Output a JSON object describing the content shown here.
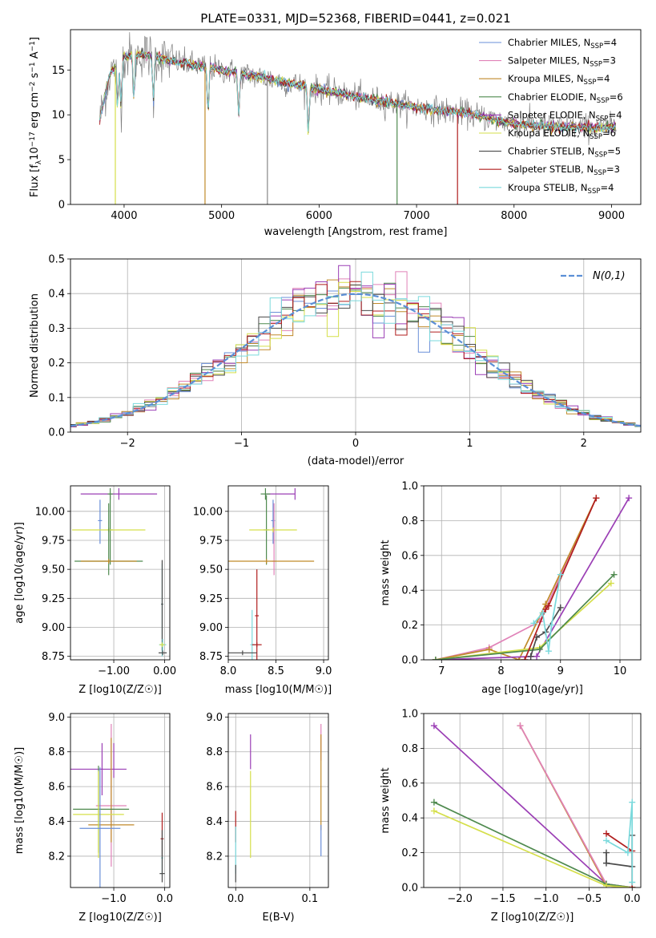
{
  "figure_title": "PLATE=0331, MJD=52368, FIBERID=0441, z=0.021",
  "models": [
    {
      "name": "Chabrier MILES, N_SSP=4",
      "label_main": "Chabrier MILES, N",
      "label_sub": "SSP",
      "label_tail": "=4",
      "color": "#6a8fd8"
    },
    {
      "name": "Salpeter MILES, N_SSP=3",
      "label_main": "Salpeter MILES, N",
      "label_sub": "SSP",
      "label_tail": "=3",
      "color": "#e082b8"
    },
    {
      "name": "Kroupa MILES, N_SSP=4",
      "label_main": "Kroupa MILES, N",
      "label_sub": "SSP",
      "label_tail": "=4",
      "color": "#c08a2a"
    },
    {
      "name": "Chabrier ELODIE, N_SSP=6",
      "label_main": "Chabrier ELODIE, N",
      "label_sub": "SSP",
      "label_tail": "=6",
      "color": "#4f8a4f"
    },
    {
      "name": "Salpeter ELODIE, N_SSP=4",
      "label_main": "Salpeter ELODIE, N",
      "label_sub": "SSP",
      "label_tail": "=4",
      "color": "#9b3fb5"
    },
    {
      "name": "Kroupa ELODIE, N_SSP=6",
      "label_main": "Kroupa ELODIE, N",
      "label_sub": "SSP",
      "label_tail": "=6",
      "color": "#d5df4a"
    },
    {
      "name": "Chabrier STELIB, N_SSP=5",
      "label_main": "Chabrier STELIB, N",
      "label_sub": "SSP",
      "label_tail": "=5",
      "color": "#4a4a4a"
    },
    {
      "name": "Salpeter STELIB, N_SSP=3",
      "label_main": "Salpeter STELIB, N",
      "label_sub": "SSP",
      "label_tail": "=3",
      "color": "#b01e1e"
    },
    {
      "name": "Kroupa STELIB, N_SSP=4",
      "label_main": "Kroupa STELIB, N",
      "label_sub": "SSP",
      "label_tail": "=4",
      "color": "#7ad9dc"
    }
  ],
  "chart_data": [
    {
      "id": "spectrum",
      "type": "line",
      "xlabel": "wavelength [Angstrom, rest frame]",
      "ylabel_pre": "Flux [f",
      "ylabel_sub": "λ",
      "ylabel_mid": "10",
      "ylabel_sup1": "−17",
      "ylabel_post": " erg cm",
      "ylabel_sup2": "−2",
      "ylabel_post2": " s",
      "ylabel_sup3": "−1",
      "ylabel_post3": " A",
      "ylabel_sup4": "−1",
      "ylabel_end": "]",
      "xlim": [
        3450,
        9300
      ],
      "ylim": [
        0,
        19.5
      ],
      "xticks": [
        4000,
        5000,
        6000,
        7000,
        8000,
        9000
      ],
      "yticks": [
        0,
        5,
        10,
        15
      ],
      "data_color": "#808080",
      "continuum": {
        "x": [
          3750,
          3850,
          4000,
          4200,
          4500,
          5000,
          5500,
          6000,
          6500,
          7000,
          7500,
          8000,
          8500,
          9000
        ],
        "y": [
          9.5,
          14.5,
          16.5,
          16.8,
          16.0,
          15.0,
          14.0,
          12.8,
          11.8,
          10.8,
          10.2,
          9.0,
          8.6,
          8.6
        ]
      }
    },
    {
      "id": "residuals",
      "type": "step-histogram",
      "xlabel": "(data-model)/error",
      "ylabel": "Normed distribution",
      "xlim": [
        -2.5,
        2.5
      ],
      "ylim": [
        0,
        0.5
      ],
      "xticks": [
        -2,
        -1,
        0,
        1,
        2
      ],
      "yticks": [
        0,
        0.1,
        0.2,
        0.3,
        0.4,
        0.5
      ],
      "bin_width": 0.1,
      "reference_label": "N(0,1)",
      "reference_color": "#5b8fd6"
    },
    {
      "id": "Z_vs_age",
      "type": "errorbar",
      "xlabel": "Z [log10(Z/Z☉)]",
      "ylabel": "age  [log10(age/yr)]",
      "xlim": [
        -1.85,
        0.1
      ],
      "ylim": [
        8.72,
        10.22
      ],
      "xticks": [
        -1,
        0
      ],
      "yticks": [
        8.75,
        9.0,
        9.25,
        9.5,
        9.75,
        10.0
      ],
      "points": [
        {
          "m": 4,
          "x": -0.9,
          "y": 10.15,
          "xerr": [
            0.75,
            0.75
          ],
          "yerr": [
            0.05,
            0.05
          ]
        },
        {
          "m": 3,
          "x": -1.07,
          "y": 10.15,
          "xerr": [
            0.05,
            0.05
          ],
          "yerr": [
            0.05,
            0.05
          ]
        },
        {
          "m": 0,
          "x": -1.27,
          "y": 9.92,
          "xerr": [
            0.04,
            0.04
          ],
          "yerr": [
            0.2,
            0.18
          ]
        },
        {
          "m": 3,
          "x": -1.07,
          "y": 9.84,
          "xerr": [
            0.05,
            0.05
          ],
          "yerr": [
            0.3,
            0.3
          ]
        },
        {
          "m": 5,
          "x": -1.1,
          "y": 9.84,
          "xerr": [
            0.72,
            0.72
          ],
          "yerr": [
            0.02,
            0.02
          ]
        },
        {
          "m": 3,
          "x": -1.1,
          "y": 9.57,
          "xerr": [
            0.67,
            0.67
          ],
          "yerr": [
            0.12,
            0.5
          ]
        },
        {
          "m": 2,
          "x": -1.1,
          "y": 9.57,
          "xerr": [
            0.55,
            0.55
          ],
          "yerr": [
            0.02,
            0.02
          ]
        },
        {
          "m": 8,
          "x": -0.05,
          "y": 9.2,
          "xerr": [
            0.02,
            0.02
          ],
          "yerr": [
            0.45,
            0.35
          ]
        },
        {
          "m": 6,
          "x": -0.05,
          "y": 9.2,
          "xerr": [
            0.02,
            0.02
          ],
          "yerr": [
            0.4,
            0.38
          ]
        },
        {
          "m": 8,
          "x": -0.04,
          "y": 8.85,
          "xerr": [
            0.07,
            0.07
          ],
          "yerr": [
            0.05,
            0.05
          ]
        },
        {
          "m": 6,
          "x": -0.04,
          "y": 8.78,
          "xerr": [
            0.08,
            0.08
          ],
          "yerr": [
            0.02,
            0.02
          ]
        },
        {
          "m": 5,
          "x": -0.05,
          "y": 8.85,
          "xerr": [
            0.05,
            0.05
          ],
          "yerr": [
            0.02,
            0.02
          ]
        }
      ]
    },
    {
      "id": "mass_vs_age",
      "type": "errorbar",
      "xlabel": "mass [log10(M/M☉)]",
      "ylabel": "",
      "xlim": [
        8.0,
        9.05
      ],
      "ylim": [
        8.72,
        10.22
      ],
      "xticks": [
        8.0,
        8.5,
        9.0
      ],
      "yticks": [
        8.75,
        9.0,
        9.25,
        9.5,
        9.75,
        10.0
      ],
      "points": [
        {
          "m": 4,
          "x": 8.7,
          "y": 10.15,
          "xerr": [
            0.3,
            0.0
          ],
          "yerr": [
            0.05,
            0.05
          ]
        },
        {
          "m": 3,
          "x": 8.39,
          "y": 10.15,
          "xerr": [
            0.05,
            0.05
          ],
          "yerr": [
            0.05,
            0.05
          ]
        },
        {
          "m": 0,
          "x": 8.47,
          "y": 9.92,
          "xerr": [
            0.02,
            0.02
          ],
          "yerr": [
            0.2,
            0.18
          ]
        },
        {
          "m": 3,
          "x": 8.4,
          "y": 9.84,
          "xerr": [
            0.03,
            0.03
          ],
          "yerr": [
            0.3,
            0.3
          ]
        },
        {
          "m": 5,
          "x": 8.47,
          "y": 9.84,
          "xerr": [
            0.25,
            0.25
          ],
          "yerr": [
            0.02,
            0.02
          ]
        },
        {
          "m": 1,
          "x": 8.48,
          "y": 9.57,
          "xerr": [
            0.02,
            0.02
          ],
          "yerr": [
            0.12,
            0.5
          ]
        },
        {
          "m": 2,
          "x": 8.4,
          "y": 9.57,
          "xerr": [
            0.5,
            0.5
          ],
          "yerr": [
            0.02,
            0.02
          ]
        },
        {
          "m": 7,
          "x": 8.3,
          "y": 9.1,
          "xerr": [
            0.02,
            0.02
          ],
          "yerr": [
            0.42,
            0.4
          ]
        },
        {
          "m": 8,
          "x": 8.25,
          "y": 8.85,
          "xerr": [
            0.02,
            0.05
          ],
          "yerr": [
            0.2,
            0.3
          ]
        },
        {
          "m": 7,
          "x": 8.3,
          "y": 8.85,
          "xerr": [
            0.05,
            0.05
          ],
          "yerr": [
            0.02,
            0.02
          ]
        },
        {
          "m": 6,
          "x": 8.15,
          "y": 8.78,
          "xerr": [
            0.15,
            0.15
          ],
          "yerr": [
            0.02,
            0.02
          ]
        }
      ]
    },
    {
      "id": "age_vs_weight",
      "type": "line",
      "xlabel": "age  [log10(age/yr)]",
      "ylabel": "mass weight",
      "xlim": [
        6.7,
        10.35
      ],
      "ylim": [
        0,
        1.0
      ],
      "xticks": [
        7,
        8,
        9,
        10
      ],
      "yticks": [
        0,
        0.2,
        0.4,
        0.6,
        0.8,
        1.0
      ],
      "series": [
        {
          "m": 1,
          "x": [
            6.9,
            7.8,
            8.65,
            9.6
          ],
          "y": [
            0.0,
            0.07,
            0.22,
            0.93
          ]
        },
        {
          "m": 2,
          "x": [
            6.9,
            7.8,
            8.3,
            8.75,
            9.6
          ],
          "y": [
            0.0,
            0.06,
            0.0,
            0.32,
            0.93
          ]
        },
        {
          "m": 4,
          "x": [
            6.9,
            8.6,
            10.15
          ],
          "y": [
            0.0,
            0.02,
            0.93
          ]
        },
        {
          "m": 5,
          "x": [
            6.9,
            8.65,
            9.85
          ],
          "y": [
            0.0,
            0.07,
            0.44
          ]
        },
        {
          "m": 3,
          "x": [
            6.9,
            8.65,
            9.9
          ],
          "y": [
            0.0,
            0.06,
            0.49
          ]
        },
        {
          "m": 6,
          "x": [
            8.5,
            8.6,
            8.75,
            9.0
          ],
          "y": [
            0.02,
            0.13,
            0.16,
            0.3
          ]
        },
        {
          "m": 7,
          "x": [
            8.4,
            8.75,
            8.8,
            9.6
          ],
          "y": [
            0.0,
            0.29,
            0.31,
            0.93
          ]
        },
        {
          "m": 8,
          "x": [
            8.55,
            8.7,
            8.8,
            8.85,
            9.0
          ],
          "y": [
            0.21,
            0.27,
            0.05,
            0.2,
            0.49
          ]
        }
      ]
    },
    {
      "id": "Z_vs_mass",
      "type": "errorbar",
      "xlabel": "Z [log10(Z/Z☉)]",
      "ylabel": "mass [log10(M/M☉)]",
      "xlim": [
        -1.85,
        0.1
      ],
      "ylim": [
        8.02,
        9.02
      ],
      "xticks": [
        -1,
        0
      ],
      "yticks": [
        8.2,
        8.4,
        8.6,
        8.8,
        9.0
      ],
      "points": [
        {
          "m": 4,
          "x": -1.0,
          "y": 8.7,
          "xerr": [
            0.85,
            0.25
          ],
          "yerr": [
            0.05,
            0.15
          ]
        },
        {
          "m": 1,
          "x": -1.05,
          "y": 8.49,
          "xerr": [
            0.3,
            0.3
          ],
          "yerr": [
            0.35,
            0.47
          ]
        },
        {
          "m": 2,
          "x": -1.05,
          "y": 8.38,
          "xerr": [
            0.45,
            0.45
          ],
          "yerr": [
            0.1,
            0.5
          ]
        },
        {
          "m": 3,
          "x": -1.3,
          "y": 8.47,
          "xerr": [
            0.5,
            0.6
          ],
          "yerr": [
            0.25,
            0.25
          ]
        },
        {
          "m": 5,
          "x": -1.3,
          "y": 8.44,
          "xerr": [
            0.5,
            0.5
          ],
          "yerr": [
            0.25,
            0.25
          ]
        },
        {
          "m": 0,
          "x": -1.27,
          "y": 8.36,
          "xerr": [
            0.4,
            0.4
          ],
          "yerr": [
            0.35,
            0.35
          ]
        },
        {
          "m": 4,
          "x": -1.23,
          "y": 8.7,
          "xerr": [
            0.02,
            0.02
          ],
          "yerr": [
            0.15,
            0.15
          ]
        },
        {
          "m": 7,
          "x": -0.05,
          "y": 8.3,
          "xerr": [
            0.03,
            0.03
          ],
          "yerr": [
            0.1,
            0.15
          ]
        },
        {
          "m": 8,
          "x": -0.05,
          "y": 8.19,
          "xerr": [
            0.02,
            0.02
          ],
          "yerr": [
            0.1,
            0.1
          ]
        },
        {
          "m": 6,
          "x": -0.05,
          "y": 8.1,
          "xerr": [
            0.05,
            0.05
          ],
          "yerr": [
            0.05,
            0.25
          ]
        }
      ]
    },
    {
      "id": "EBV_vs_mass",
      "type": "errorbar",
      "xlabel": "E(B-V)",
      "ylabel": "",
      "xlim": [
        -0.01,
        0.125
      ],
      "ylim": [
        8.02,
        9.02
      ],
      "xticks": [
        0.0,
        0.1
      ],
      "yticks": [
        8.2,
        8.4,
        8.6,
        8.8,
        9.0
      ],
      "points": [
        {
          "m": 7,
          "x": 0.0,
          "y": 8.36,
          "xerr": [
            0,
            0
          ],
          "yerr": [
            0.08,
            0.1
          ]
        },
        {
          "m": 8,
          "x": 0.0,
          "y": 8.22,
          "xerr": [
            0,
            0
          ],
          "yerr": [
            0.12,
            0.15
          ]
        },
        {
          "m": 6,
          "x": 0.0,
          "y": 8.1,
          "xerr": [
            0,
            0
          ],
          "yerr": [
            0.05,
            0.05
          ]
        },
        {
          "m": 4,
          "x": 0.02,
          "y": 8.78,
          "xerr": [
            0,
            0
          ],
          "yerr": [
            0.08,
            0.12
          ]
        },
        {
          "m": 5,
          "x": 0.02,
          "y": 8.44,
          "xerr": [
            0,
            0
          ],
          "yerr": [
            0.25,
            0.25
          ]
        },
        {
          "m": 1,
          "x": 0.115,
          "y": 8.85,
          "xerr": [
            0,
            0
          ],
          "yerr": [
            0.1,
            0.11
          ]
        },
        {
          "m": 2,
          "x": 0.115,
          "y": 8.6,
          "xerr": [
            0,
            0
          ],
          "yerr": [
            0.25,
            0.3
          ]
        },
        {
          "m": 0,
          "x": 0.115,
          "y": 8.28,
          "xerr": [
            0,
            0
          ],
          "yerr": [
            0.08,
            0.1
          ]
        }
      ]
    },
    {
      "id": "Z_vs_weight",
      "type": "line",
      "xlabel": "Z [log10(Z/Z☉)]",
      "ylabel": "mass weight",
      "xlim": [
        -2.42,
        0.1
      ],
      "ylim": [
        0,
        1.0
      ],
      "xticks": [
        -2.0,
        -1.5,
        -1.0,
        -0.5,
        0.0
      ],
      "yticks": [
        0,
        0.2,
        0.4,
        0.6,
        0.8,
        1.0
      ],
      "series": [
        {
          "m": 4,
          "x": [
            -2.3,
            -0.3,
            0.0
          ],
          "y": [
            0.93,
            0.02,
            0.0
          ]
        },
        {
          "m": 2,
          "x": [
            -1.3,
            -0.3,
            0.0
          ],
          "y": [
            0.93,
            0.01,
            0.0
          ]
        },
        {
          "m": 1,
          "x": [
            -1.3,
            -0.3,
            0.0
          ],
          "y": [
            0.93,
            0.02,
            0.0
          ]
        },
        {
          "m": 3,
          "x": [
            -2.3,
            -0.3,
            0.0
          ],
          "y": [
            0.49,
            0.02,
            0.0
          ]
        },
        {
          "m": 5,
          "x": [
            -2.3,
            -0.3,
            0.0
          ],
          "y": [
            0.44,
            0.01,
            0.0
          ]
        },
        {
          "m": 7,
          "x": [
            -0.3,
            0.0,
            0.0
          ],
          "y": [
            0.31,
            0.21,
            0.0
          ]
        },
        {
          "m": 6,
          "x": [
            -0.3,
            -0.3,
            0.0,
            0.0
          ],
          "y": [
            0.2,
            0.14,
            0.12,
            0.3
          ]
        },
        {
          "m": 8,
          "x": [
            -0.3,
            -0.05,
            0.0,
            0.0
          ],
          "y": [
            0.27,
            0.2,
            0.49,
            0.03
          ]
        }
      ]
    }
  ]
}
